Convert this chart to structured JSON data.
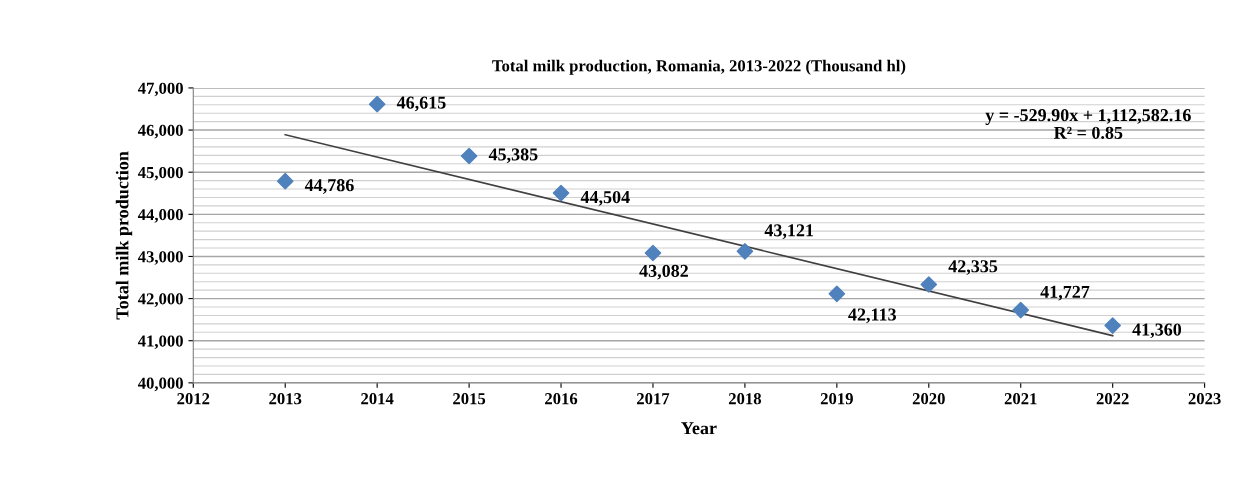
{
  "chart_data": {
    "type": "scatter",
    "title": "Total milk production, Romania, 2013-2022 (Thousand hl)",
    "xlabel": "Year",
    "ylabel": "Total milk production",
    "xlim": [
      2012,
      2023
    ],
    "xticks": [
      2012,
      2013,
      2014,
      2015,
      2016,
      2017,
      2018,
      2019,
      2020,
      2021,
      2022,
      2023
    ],
    "ylim": [
      40000,
      47000
    ],
    "yticks": [
      {
        "value": 40000,
        "label": "40,000"
      },
      {
        "value": 41000,
        "label": "41,000"
      },
      {
        "value": 42000,
        "label": "42,000"
      },
      {
        "value": 43000,
        "label": "43,000"
      },
      {
        "value": 44000,
        "label": "44,000"
      },
      {
        "value": 45000,
        "label": "45,000"
      },
      {
        "value": 46000,
        "label": "46,000"
      },
      {
        "value": 47000,
        "label": "47,000"
      }
    ],
    "grid": "y",
    "legend": false,
    "series": [
      {
        "marker": "diamond",
        "color": "#4f81bd",
        "x": [
          2013,
          2014,
          2015,
          2016,
          2017,
          2018,
          2019,
          2020,
          2021,
          2022
        ],
        "values": [
          44786,
          46615,
          45385,
          44504,
          43082,
          43121,
          42113,
          42335,
          41727,
          41360
        ],
        "value_labels": [
          "44,786",
          "46,615",
          "45,385",
          "44,504",
          "43,082",
          "43,121",
          "42,113",
          "42,335",
          "41,727",
          "41,360"
        ]
      },
      {
        "type": "line",
        "color": "#404040",
        "x": [
          2013,
          2022
        ],
        "values": [
          45890,
          41120
        ]
      }
    ],
    "annotations": [
      "y = -529.90x + 1,112,582.16\nR² = 0.85"
    ]
  }
}
